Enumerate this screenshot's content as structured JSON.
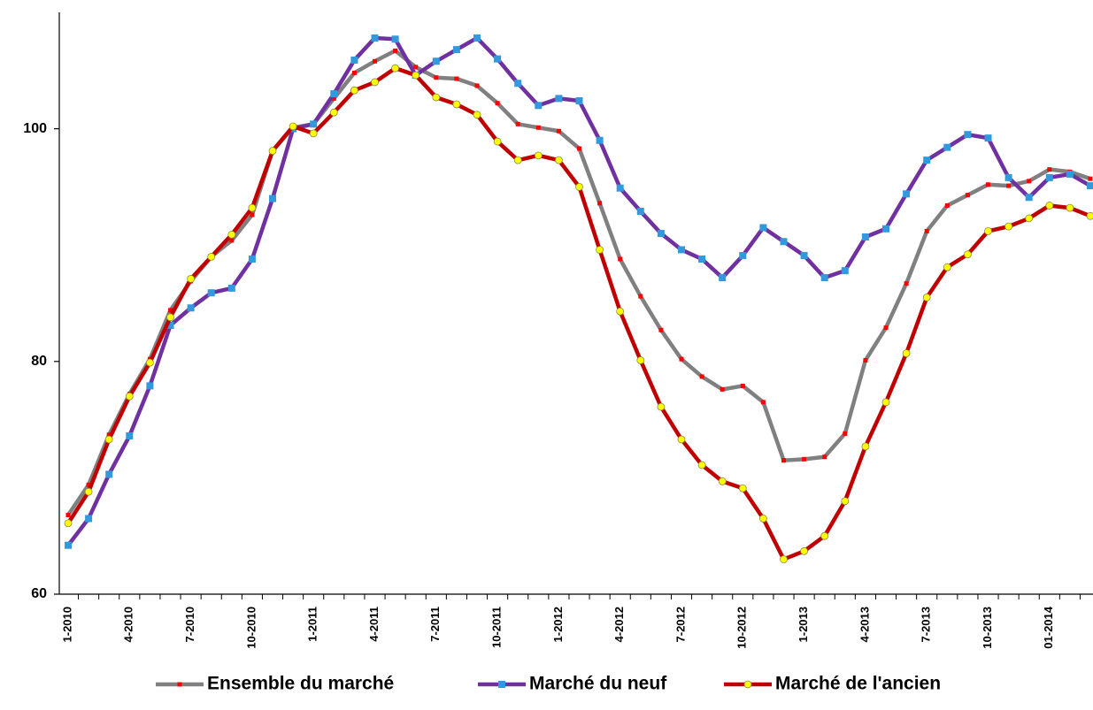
{
  "chart_data": {
    "type": "line",
    "categories": [
      "1-2010",
      null,
      null,
      "4-2010",
      null,
      null,
      "7-2010",
      null,
      null,
      "10-2010",
      null,
      null,
      "1-2011",
      null,
      null,
      "4-2011",
      null,
      null,
      "7-2011",
      null,
      null,
      "10-2011",
      null,
      null,
      "1-2012",
      null,
      null,
      "4-2012",
      null,
      null,
      "7-2012",
      null,
      null,
      "10-2012",
      null,
      null,
      "1-2013",
      null,
      null,
      "4-2013",
      null,
      null,
      "7-2013",
      null,
      null,
      "10-2013",
      null,
      null,
      "01-2014",
      null,
      null
    ],
    "series": [
      {
        "name": "Ensemble du marché",
        "color": "#808080",
        "marker_color": "#ff0000",
        "marker": "square",
        "values": [
          66.8,
          69.4,
          73.7,
          77.2,
          80.2,
          84.4,
          86.9,
          89.0,
          90.4,
          92.6,
          98.1,
          100.1,
          100.4,
          102.6,
          104.8,
          105.8,
          106.7,
          105.3,
          104.4,
          104.3,
          103.7,
          102.2,
          100.4,
          100.1,
          99.8,
          98.3,
          93.6,
          88.8,
          85.6,
          82.7,
          80.2,
          78.7,
          77.6,
          77.9,
          76.5,
          71.5,
          71.6,
          71.8,
          73.8,
          80.1,
          82.9,
          86.7,
          91.2,
          93.4,
          94.3,
          95.2,
          95.1,
          95.5,
          96.5,
          96.3,
          95.7
        ]
      },
      {
        "name": "Marché du neuf",
        "color": "#7030a0",
        "marker_color": "#3399dd",
        "marker": "square",
        "values": [
          64.2,
          66.5,
          70.3,
          73.6,
          77.9,
          83.1,
          84.6,
          85.9,
          86.3,
          88.8,
          94.0,
          100.0,
          100.4,
          103.0,
          105.9,
          107.8,
          107.7,
          104.6,
          105.8,
          106.8,
          107.8,
          106.0,
          103.9,
          102.0,
          102.6,
          102.4,
          99.0,
          94.9,
          92.9,
          91.0,
          89.6,
          88.8,
          87.2,
          89.1,
          91.5,
          90.3,
          89.1,
          87.2,
          87.8,
          90.7,
          91.4,
          94.4,
          97.3,
          98.4,
          99.5,
          99.2,
          95.8,
          94.1,
          95.8,
          96.1,
          95.1
        ]
      },
      {
        "name": "Marché de l'ancien",
        "color": "#c00000",
        "marker_color": "#ffff00",
        "marker": "circle",
        "values": [
          66.1,
          68.8,
          73.3,
          77.0,
          79.9,
          83.8,
          87.1,
          89.0,
          90.9,
          93.2,
          98.1,
          100.2,
          99.6,
          101.4,
          103.3,
          104.0,
          105.2,
          104.6,
          102.7,
          102.1,
          101.2,
          98.9,
          97.3,
          97.7,
          97.3,
          95.0,
          89.6,
          84.3,
          80.1,
          76.1,
          73.3,
          71.1,
          69.7,
          69.1,
          66.5,
          63.0,
          63.7,
          65.0,
          68.0,
          72.7,
          76.5,
          80.7,
          85.5,
          88.1,
          89.2,
          91.2,
          91.6,
          92.3,
          93.4,
          93.2,
          92.5
        ]
      }
    ],
    "ylim": [
      60,
      110
    ],
    "yticks": [
      60,
      80,
      100
    ],
    "grid": false,
    "legend": "bottom"
  }
}
